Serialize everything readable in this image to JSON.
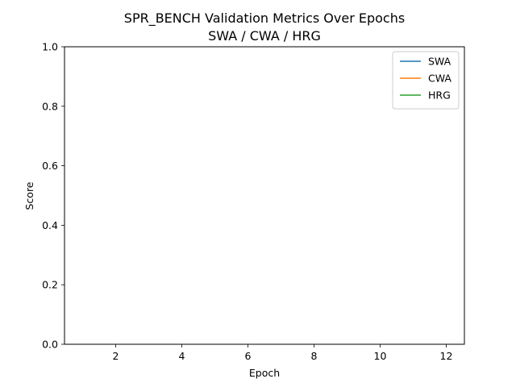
{
  "chart_data": {
    "type": "line",
    "title": "SPR_BENCH Validation Metrics Over Epochs",
    "subtitle": "SWA / CWA / HRG",
    "xlabel": "Epoch",
    "ylabel": "Score",
    "xlim": [
      0.45,
      12.55
    ],
    "ylim": [
      0,
      1
    ],
    "xticks": [
      2,
      4,
      6,
      8,
      10,
      12
    ],
    "yticks": [
      0.0,
      0.2,
      0.4,
      0.6,
      0.8,
      1.0
    ],
    "ytick_labels": [
      "0.0",
      "0.2",
      "0.4",
      "0.6",
      "0.8",
      "1.0"
    ],
    "grid": false,
    "legend_position": "upper right",
    "series": [
      {
        "name": "SWA",
        "color": "#1f77b4",
        "x": [],
        "y": []
      },
      {
        "name": "CWA",
        "color": "#ff7f0e",
        "x": [],
        "y": []
      },
      {
        "name": "HRG",
        "color": "#2ca02c",
        "x": [],
        "y": []
      }
    ]
  }
}
